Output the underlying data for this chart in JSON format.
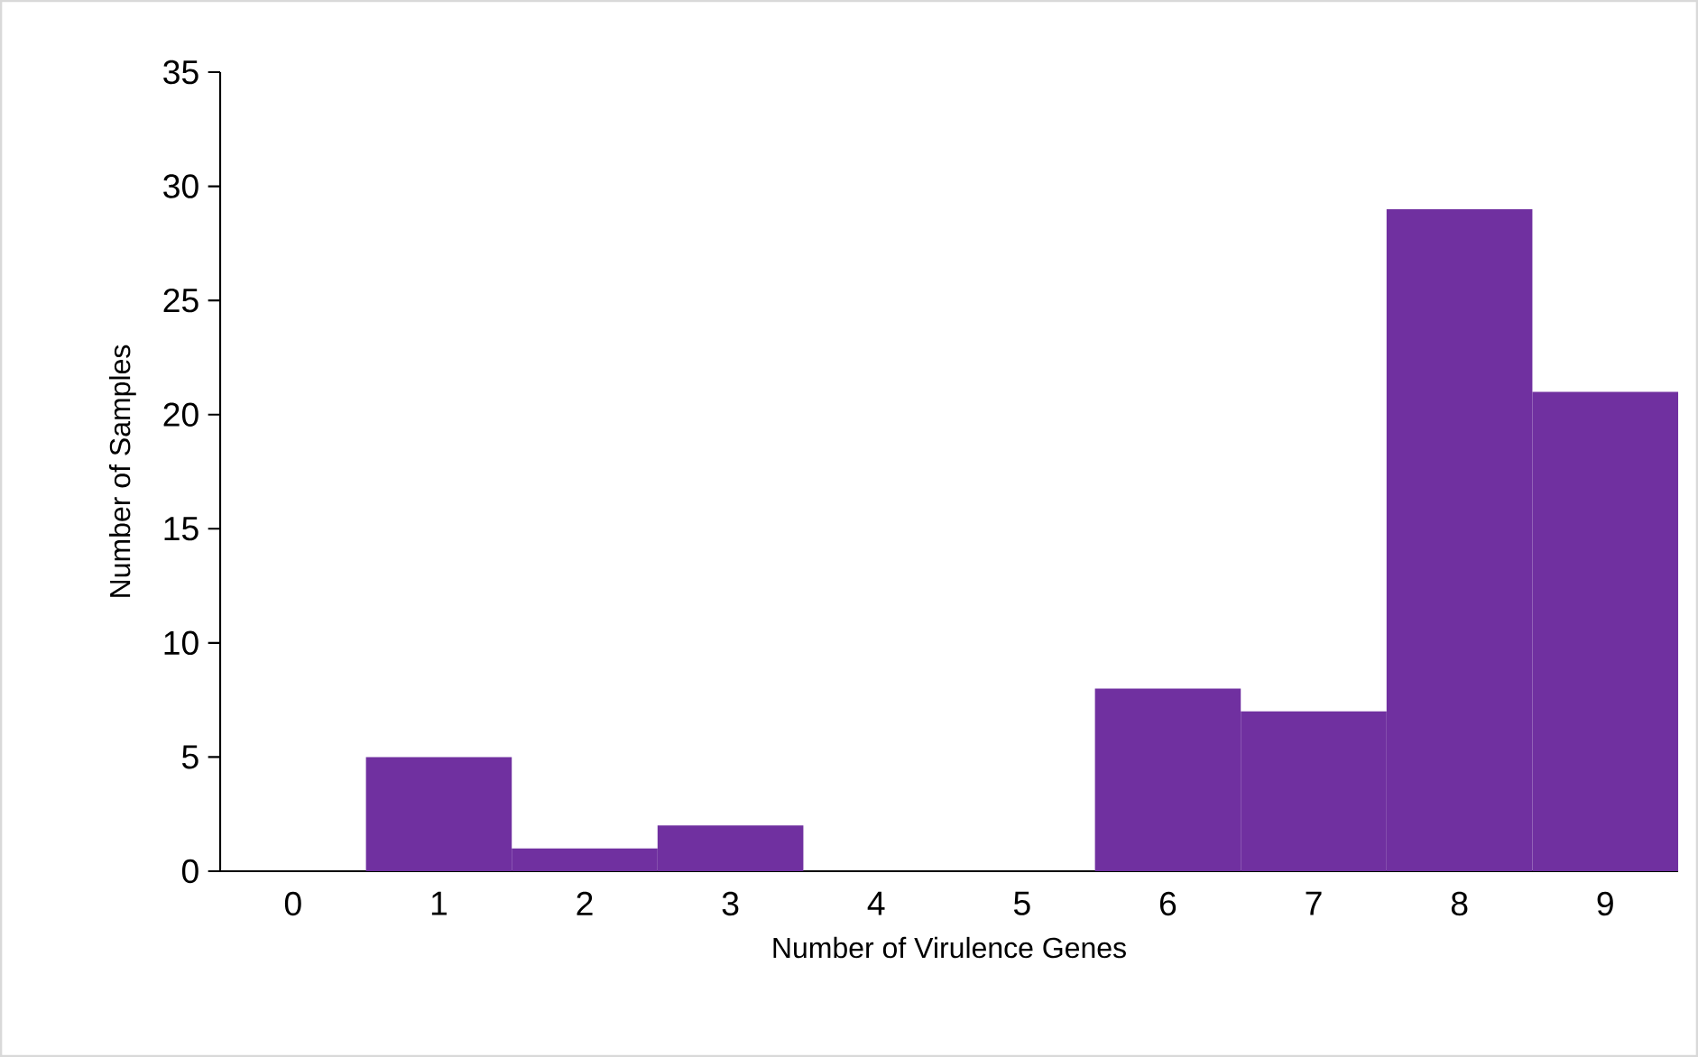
{
  "chart_data": {
    "type": "bar",
    "xlabel": "Number of Virulence Genes",
    "ylabel": "Number of Samples",
    "categories": [
      "0",
      "1",
      "2",
      "3",
      "4",
      "5",
      "6",
      "7",
      "8",
      "9"
    ],
    "values": [
      0,
      5,
      1,
      2,
      0,
      0,
      8,
      7,
      29,
      21
    ],
    "color": "#7030a0",
    "ylim": [
      0,
      35
    ],
    "yticks": [
      0,
      5,
      10,
      15,
      20,
      25,
      30,
      35
    ]
  }
}
